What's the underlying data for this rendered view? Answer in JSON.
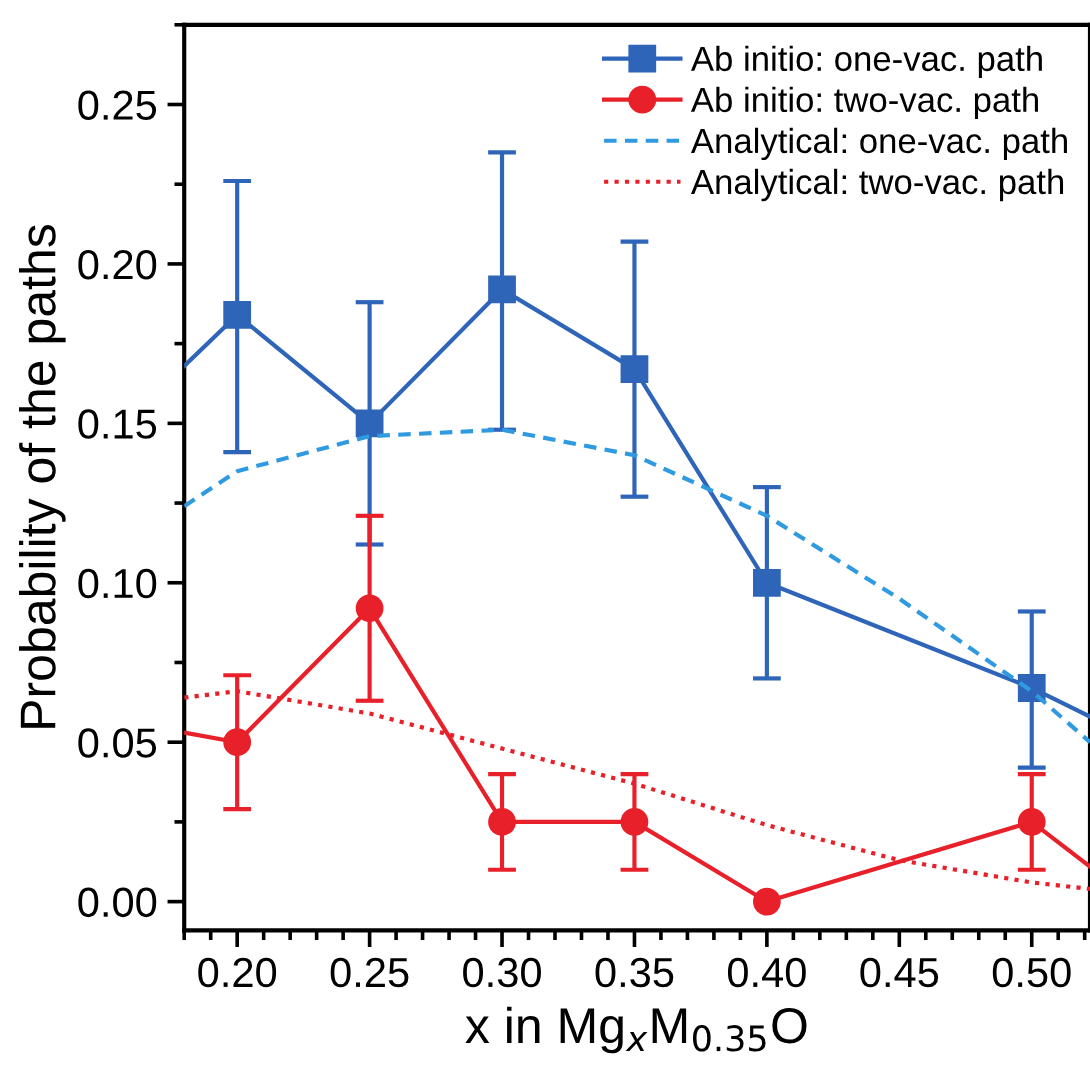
{
  "chart_data": {
    "type": "line",
    "xlabel": "x in Mg$_{x}$M$_{0.35}$O",
    "ylabel": "Probability of the paths",
    "xlim": [
      0.18,
      0.522
    ],
    "ylim": [
      -0.009,
      0.275
    ],
    "xticks": [
      {
        "value": 0.2,
        "label": "0.20"
      },
      0.25,
      {
        "value": 0.3,
        "label": "0.30"
      },
      0.35,
      {
        "value": 0.4,
        "label": "0.40"
      },
      0.45,
      {
        "value": 0.5,
        "label": "0.50"
      }
    ],
    "yticks": [
      {
        "value": 0.0,
        "label": "0.00"
      },
      0.05,
      {
        "value": 0.1,
        "label": "0.10"
      },
      0.15,
      {
        "value": 0.2,
        "label": "0.20"
      },
      0.25
    ],
    "grid": false,
    "legend": "top right",
    "series": [
      {
        "name": "Ab initio: one-vac. path",
        "color": "#2f65b8",
        "marker": "square",
        "line_style": "solid",
        "x": [
          0.18,
          0.2,
          0.25,
          0.3,
          0.35,
          0.4,
          0.5,
          0.522
        ],
        "values": [
          0.168,
          0.184,
          0.15,
          0.192,
          0.167,
          0.1,
          0.067,
          0.058
        ],
        "errors": [
          null,
          [
            0.141,
            0.226
          ],
          [
            0.112,
            0.188
          ],
          [
            0.148,
            0.235
          ],
          [
            0.127,
            0.207
          ],
          [
            0.07,
            0.13
          ],
          [
            0.042,
            0.091
          ],
          null
        ]
      },
      {
        "name": "Ab initio: two-vac. path",
        "color": "#e8202a",
        "marker": "circle",
        "line_style": "solid",
        "x": [
          0.18,
          0.2,
          0.25,
          0.3,
          0.35,
          0.4,
          0.5,
          0.522
        ],
        "values": [
          0.053,
          0.05,
          0.092,
          0.025,
          0.025,
          0.0,
          0.025,
          0.011
        ],
        "errors": [
          null,
          [
            0.029,
            0.071
          ],
          [
            0.063,
            0.121
          ],
          [
            0.01,
            0.04
          ],
          [
            0.01,
            0.04
          ],
          null,
          [
            0.01,
            0.04
          ],
          null
        ]
      },
      {
        "name": "Analytical: one-vac. path",
        "color": "#2f9ae0",
        "marker": "none",
        "line_style": "dashed",
        "x": [
          0.18,
          0.2,
          0.25,
          0.3,
          0.35,
          0.4,
          0.45,
          0.5,
          0.522
        ],
        "values": [
          0.124,
          0.135,
          0.146,
          0.148,
          0.14,
          0.121,
          0.095,
          0.066,
          0.05
        ]
      },
      {
        "name": "Analytical: two-vac. path",
        "color": "#e8202a",
        "marker": "none",
        "line_style": "dotted",
        "x": [
          0.18,
          0.2,
          0.25,
          0.3,
          0.35,
          0.4,
          0.45,
          0.5,
          0.522
        ],
        "values": [
          0.064,
          0.066,
          0.059,
          0.048,
          0.037,
          0.024,
          0.013,
          0.006,
          0.004
        ]
      }
    ]
  }
}
